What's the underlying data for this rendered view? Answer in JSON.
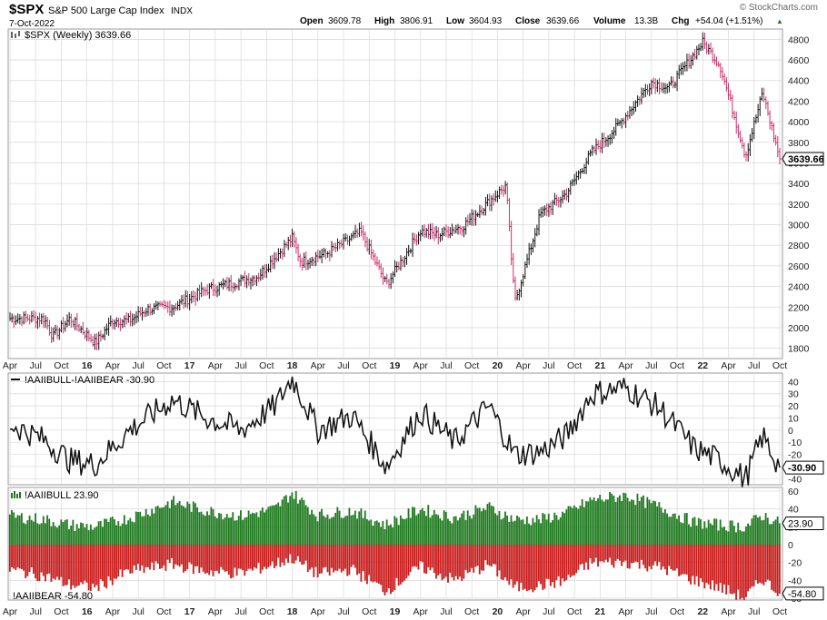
{
  "header": {
    "symbol": "$SPX",
    "name": "S&P 500 Large Cap Index",
    "exchange": "INDX",
    "date": "7-Oct-2022",
    "brand": "© StockCharts.com",
    "quote": [
      {
        "label": "Open",
        "value": "3609.78"
      },
      {
        "label": "High",
        "value": "3806.91"
      },
      {
        "label": "Low",
        "value": "3604.93"
      },
      {
        "label": "Close",
        "value": "3639.66"
      },
      {
        "label": "Volume",
        "value": "13.3B"
      },
      {
        "label": "Chg",
        "value": "+54.04 (+1.51%)"
      }
    ],
    "chg_arrow": "▲"
  },
  "colors": {
    "price_up": "#111111",
    "price_down": "#cc2e6e",
    "bull_bar": "#1f7a1f",
    "bear_bar": "#c91b1b",
    "grid": "#d9d9d9",
    "axis": "#555555"
  },
  "chart_data": [
    {
      "type": "line",
      "title": "$SPX (Weekly) 3639.66",
      "style": "ohlc-bars",
      "last_value_label": "3639.66",
      "ylim": [
        1700,
        4900
      ],
      "y_ticks": [
        1800,
        2000,
        2200,
        2400,
        2600,
        2800,
        3000,
        3200,
        3400,
        3600,
        3800,
        4000,
        4200,
        4400,
        4600,
        4800
      ],
      "x_ticks": [
        "Apr",
        "Jul",
        "Oct",
        "16",
        "Apr",
        "Jul",
        "Oct",
        "17",
        "Apr",
        "Jul",
        "Oct",
        "18",
        "Apr",
        "Jul",
        "Oct",
        "19",
        "Apr",
        "Jul",
        "Oct",
        "20",
        "Apr",
        "Jul",
        "Oct",
        "21",
        "Apr",
        "Jul",
        "Oct",
        "22",
        "Apr",
        "Jul",
        "Oct"
      ],
      "x_range": [
        "2015-04",
        "2022-10"
      ],
      "x": [
        "2015-04",
        "2015-08",
        "2015-09",
        "2015-11",
        "2016-02",
        "2016-04",
        "2016-06",
        "2016-08",
        "2016-11",
        "2017-03",
        "2017-06",
        "2017-09",
        "2018-01",
        "2018-02",
        "2018-05",
        "2018-09",
        "2018-12",
        "2019-04",
        "2019-06",
        "2019-09",
        "2020-02",
        "2020-03",
        "2020-06",
        "2020-09",
        "2020-12",
        "2021-03",
        "2021-07",
        "2021-09",
        "2022-01",
        "2022-03",
        "2022-06",
        "2022-08",
        "2022-10"
      ],
      "series": [
        {
          "values": [
            2090,
            2090,
            1910,
            2090,
            1850,
            2070,
            2070,
            2180,
            2200,
            2370,
            2430,
            2500,
            2870,
            2640,
            2720,
            2930,
            2420,
            2940,
            2900,
            2990,
            3380,
            2240,
            3100,
            3300,
            3700,
            3950,
            4390,
            4320,
            4770,
            4550,
            3670,
            4280,
            3639.66
          ]
        }
      ]
    },
    {
      "type": "line",
      "title": "!AAIIBULL-!AAIIBEAR -30.90",
      "last_value_label": "-30.90",
      "ylim": [
        -45,
        47
      ],
      "y_ticks": [
        -40,
        -30,
        -20,
        -10,
        0,
        10,
        20,
        30,
        40
      ],
      "x_ticks": [
        "Apr",
        "Jul",
        "Oct",
        "16",
        "Apr",
        "Jul",
        "Oct",
        "17",
        "Apr",
        "Jul",
        "Oct",
        "18",
        "Apr",
        "Jul",
        "Oct",
        "19",
        "Apr",
        "Jul",
        "Oct",
        "20",
        "Apr",
        "Jul",
        "Oct",
        "21",
        "Apr",
        "Jul",
        "Oct",
        "22",
        "Apr",
        "Jul",
        "Oct"
      ],
      "x": [
        "2015-04",
        "2015-08",
        "2015-11",
        "2016-02",
        "2016-06",
        "2016-11",
        "2017-03",
        "2017-07",
        "2017-11",
        "2018-01",
        "2018-04",
        "2018-08",
        "2018-12",
        "2019-04",
        "2019-08",
        "2019-12",
        "2020-03",
        "2020-06",
        "2020-09",
        "2020-12",
        "2021-04",
        "2021-08",
        "2021-12",
        "2022-03",
        "2022-06",
        "2022-08",
        "2022-10"
      ],
      "series": [
        {
          "values": [
            5,
            -8,
            -25,
            -28,
            0,
            25,
            10,
            0,
            20,
            43,
            0,
            12,
            -30,
            15,
            -10,
            20,
            -20,
            -18,
            -5,
            30,
            35,
            18,
            -15,
            -25,
            -40,
            -5,
            -30.9
          ]
        }
      ]
    },
    {
      "type": "bar",
      "title": "!AAIIBULL 23.90",
      "title2": "!AAIIBEAR -54.80",
      "bull_last_label": "23.90",
      "bear_last_label": "-54.80",
      "ylim": [
        -62,
        64
      ],
      "y_ticks": [
        -60,
        -40,
        -20,
        0,
        20,
        40,
        60
      ],
      "x_ticks": [
        "Apr",
        "Jul",
        "Oct",
        "16",
        "Apr",
        "Jul",
        "Oct",
        "17",
        "Apr",
        "Jul",
        "Oct",
        "18",
        "Apr",
        "Jul",
        "Oct",
        "19",
        "Apr",
        "Jul",
        "Oct",
        "20",
        "Apr",
        "Jul",
        "Oct",
        "21",
        "Apr",
        "Jul",
        "Oct",
        "22",
        "Apr",
        "Jul",
        "Oct"
      ],
      "x": [
        "2015-04",
        "2015-08",
        "2015-11",
        "2016-02",
        "2016-06",
        "2016-11",
        "2017-03",
        "2017-07",
        "2017-11",
        "2018-01",
        "2018-04",
        "2018-08",
        "2018-12",
        "2019-04",
        "2019-08",
        "2019-12",
        "2020-03",
        "2020-06",
        "2020-09",
        "2020-12",
        "2021-04",
        "2021-08",
        "2021-12",
        "2022-03",
        "2022-06",
        "2022-08",
        "2022-10"
      ],
      "series": [
        {
          "name": "!AAIIBULL",
          "values": [
            32,
            28,
            22,
            20,
            30,
            48,
            38,
            32,
            40,
            58,
            33,
            38,
            22,
            40,
            30,
            42,
            28,
            28,
            35,
            50,
            55,
            42,
            25,
            22,
            20,
            33,
            23.9
          ]
        },
        {
          "name": "!AAIIBEAR",
          "values": [
            -28,
            -35,
            -45,
            -48,
            -30,
            -22,
            -30,
            -32,
            -22,
            -15,
            -33,
            -28,
            -52,
            -25,
            -40,
            -22,
            -48,
            -46,
            -40,
            -20,
            -20,
            -25,
            -40,
            -48,
            -60,
            -38,
            -54.8
          ]
        }
      ]
    }
  ]
}
